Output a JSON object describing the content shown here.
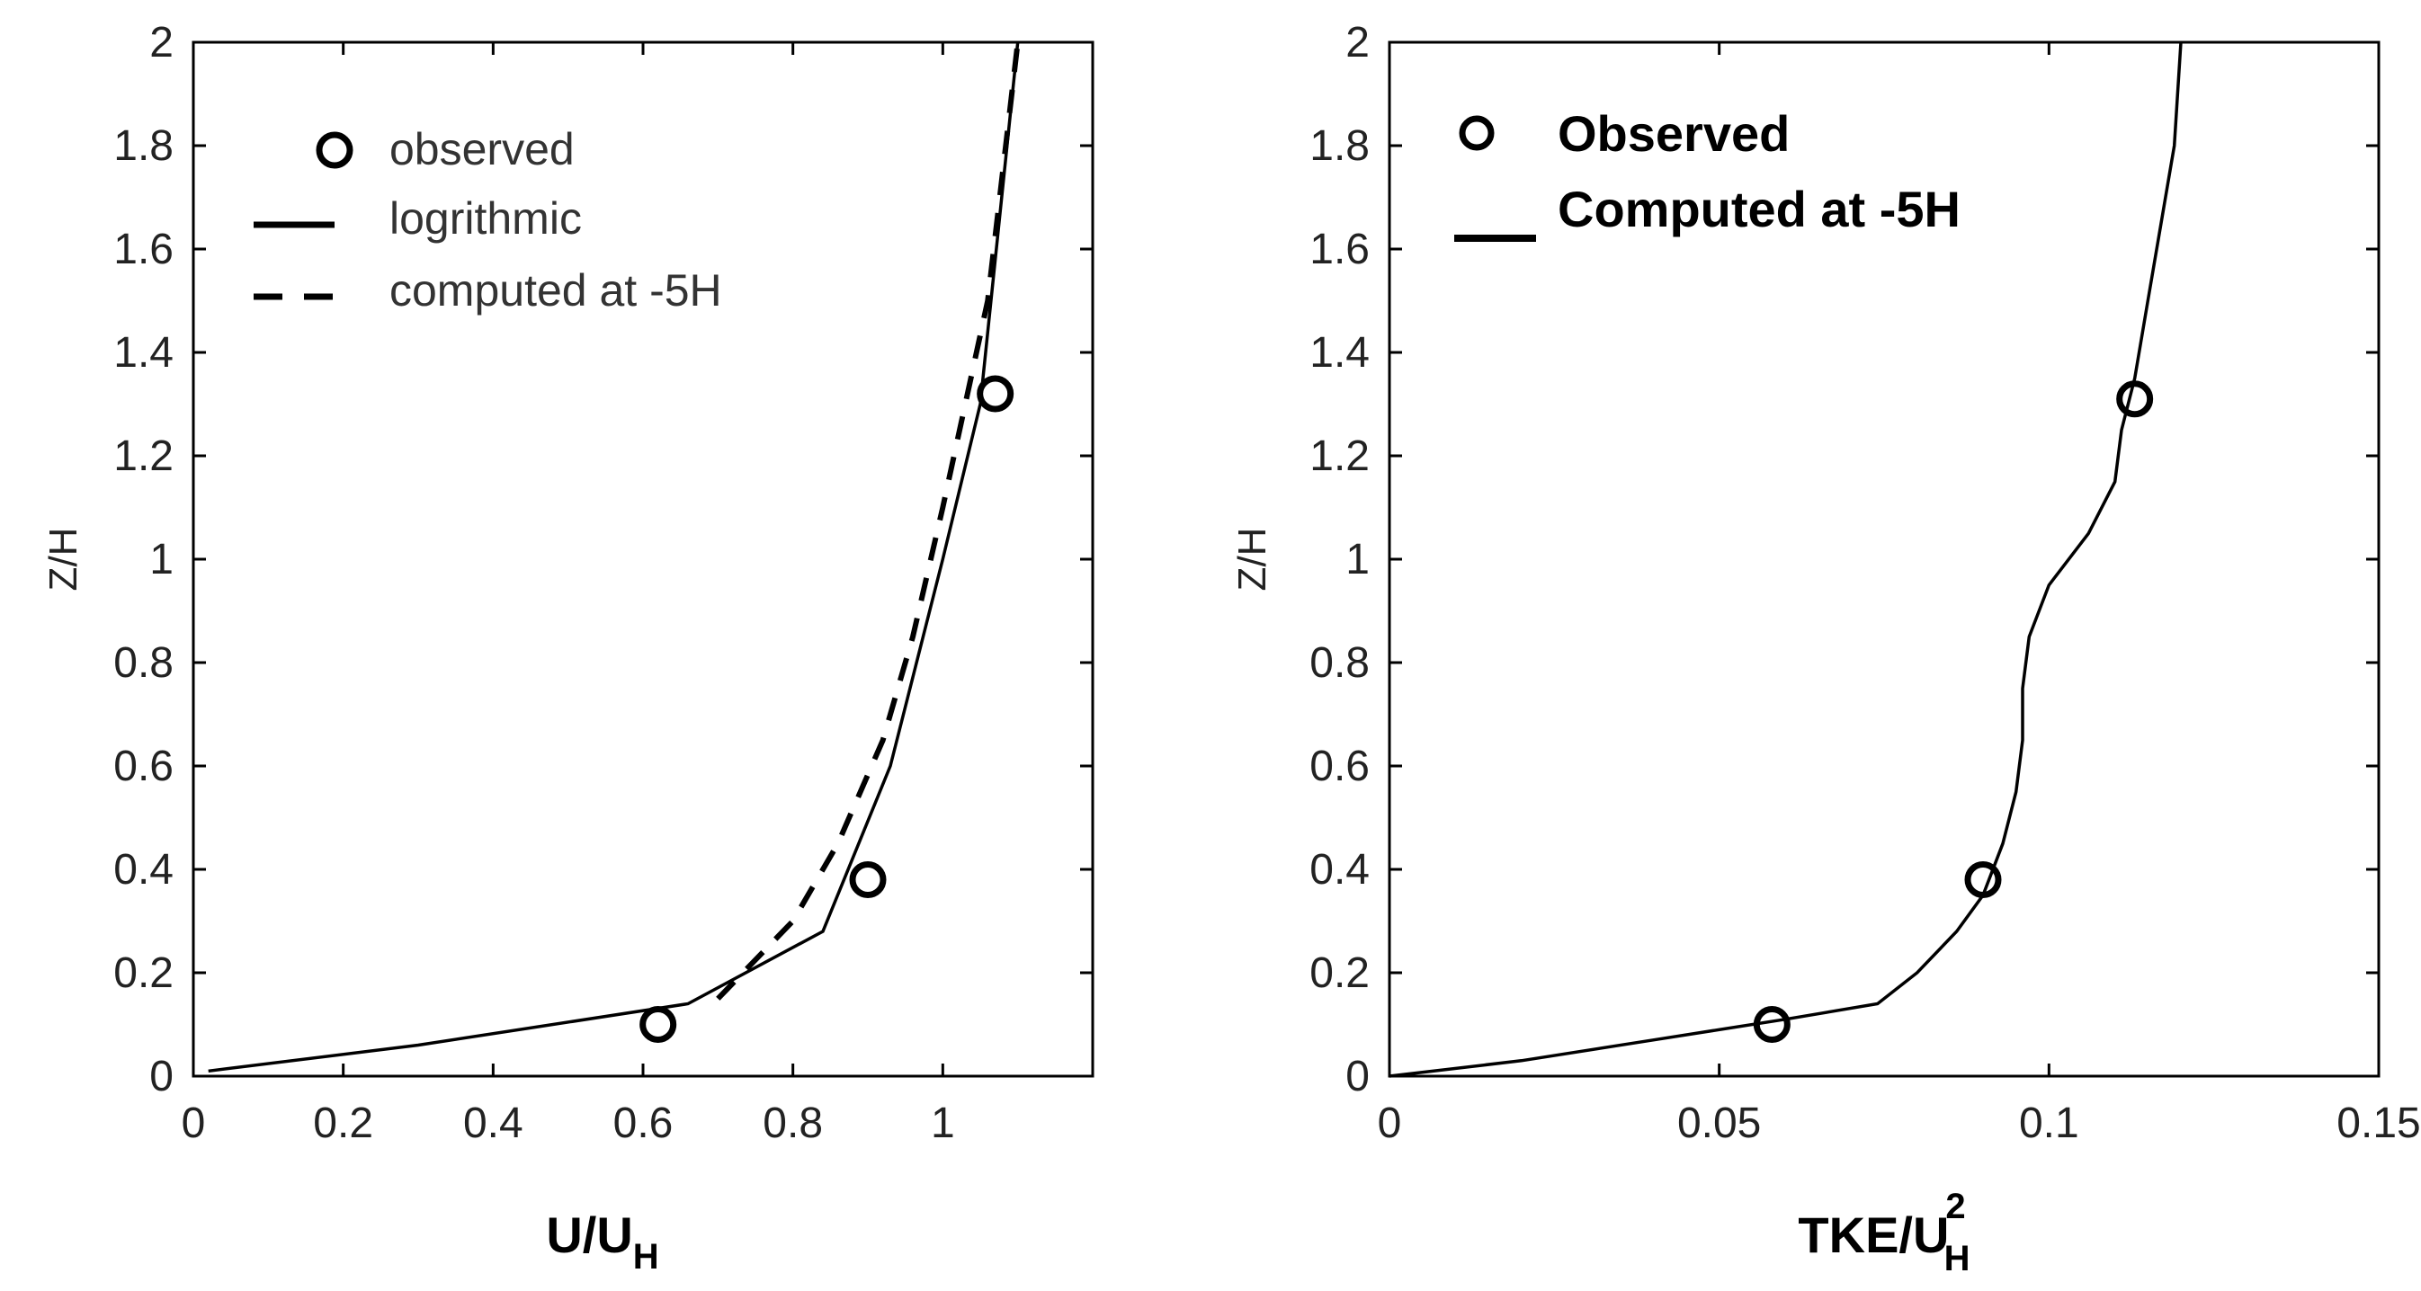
{
  "chart_data": [
    {
      "type": "line",
      "xlabel_main": "U/U",
      "xlabel_sub": "H",
      "ylabel": "Z/H",
      "xlim": [
        0,
        1.2
      ],
      "ylim": [
        0,
        2
      ],
      "xticks": [
        0,
        0.2,
        0.4,
        0.6,
        0.8,
        1
      ],
      "xtick_labels": [
        "0",
        "0.2",
        "0.4",
        "0.6",
        "0.8",
        "1"
      ],
      "yticks": [
        0,
        0.2,
        0.4,
        0.6,
        0.8,
        1,
        1.2,
        1.4,
        1.6,
        1.8,
        2
      ],
      "ytick_labels": [
        "0",
        "0.2",
        "0.4",
        "0.6",
        "0.8",
        "1",
        "1.2",
        "1.4",
        "1.6",
        "1.8",
        "2"
      ],
      "legend": [
        "observed",
        "logrithmic",
        "computed at -5H"
      ],
      "legend_location": "top-left",
      "series": [
        {
          "name": "observed",
          "style": "marker",
          "x": [
            0.62,
            0.9,
            1.07
          ],
          "y": [
            0.1,
            0.38,
            1.32
          ]
        },
        {
          "name": "logrithmic",
          "style": "solid",
          "x": [
            0.02,
            0.3,
            0.66,
            0.84,
            0.93,
            1.0,
            1.05,
            1.1
          ],
          "y": [
            0.01,
            0.06,
            0.14,
            0.28,
            0.6,
            1.0,
            1.3,
            2.0
          ]
        },
        {
          "name": "computed at -5H",
          "style": "dashed",
          "x": [
            0.7,
            0.8,
            0.86,
            0.92,
            0.96,
            1.0,
            1.06,
            1.1
          ],
          "y": [
            0.15,
            0.3,
            0.45,
            0.65,
            0.85,
            1.1,
            1.5,
            2.0
          ]
        }
      ]
    },
    {
      "type": "line",
      "xlabel_main": "TKE/U",
      "xlabel_sub": "H",
      "xlabel_sup": "2",
      "ylabel": "Z/H",
      "xlim": [
        0,
        0.15
      ],
      "ylim": [
        0,
        2
      ],
      "xticks": [
        0,
        0.05,
        0.1,
        0.15
      ],
      "xtick_labels": [
        "0",
        "0.05",
        "0.1",
        "0.15"
      ],
      "yticks": [
        0,
        0.2,
        0.4,
        0.6,
        0.8,
        1,
        1.2,
        1.4,
        1.6,
        1.8,
        2
      ],
      "ytick_labels": [
        "0",
        "0.2",
        "0.4",
        "0.6",
        "0.8",
        "1",
        "1.2",
        "1.4",
        "1.6",
        "1.8",
        "2"
      ],
      "legend": [
        "Observed",
        "Computed at -5H"
      ],
      "legend_location": "top-left",
      "series": [
        {
          "name": "Observed",
          "style": "marker",
          "x": [
            0.058,
            0.09,
            0.113
          ],
          "y": [
            0.1,
            0.38,
            1.31
          ]
        },
        {
          "name": "Computed at -5H",
          "style": "solid",
          "x": [
            0.0,
            0.02,
            0.04,
            0.06,
            0.074,
            0.08,
            0.086,
            0.09,
            0.093,
            0.095,
            0.096,
            0.096,
            0.097,
            0.1,
            0.106,
            0.11,
            0.111,
            0.113,
            0.115,
            0.117,
            0.119,
            0.12
          ],
          "y": [
            0.0,
            0.03,
            0.07,
            0.11,
            0.14,
            0.2,
            0.28,
            0.35,
            0.45,
            0.55,
            0.65,
            0.75,
            0.85,
            0.95,
            1.05,
            1.15,
            1.25,
            1.35,
            1.5,
            1.65,
            1.8,
            2.0
          ]
        }
      ]
    }
  ]
}
